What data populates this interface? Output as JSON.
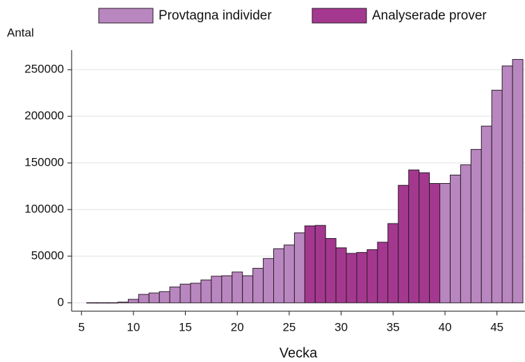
{
  "chart_data": {
    "type": "bar",
    "y_label": "Antal",
    "x_label": "Vecka",
    "x": [
      6,
      7,
      8,
      9,
      10,
      11,
      12,
      13,
      14,
      15,
      16,
      17,
      18,
      19,
      20,
      21,
      22,
      23,
      24,
      25,
      26,
      27,
      28,
      29,
      30,
      31,
      32,
      33,
      34,
      35,
      36,
      37,
      38,
      39,
      40,
      41,
      42,
      43,
      44,
      45,
      46,
      47
    ],
    "series": [
      {
        "name": "Provtagna individer",
        "color": "#b987bf",
        "values": [
          100,
          100,
          100,
          700,
          3700,
          9000,
          10500,
          12000,
          17000,
          20000,
          21000,
          24500,
          28500,
          29000,
          33000,
          29000,
          37000,
          47500,
          58000,
          62000,
          75000,
          null,
          null,
          null,
          null,
          null,
          null,
          null,
          null,
          null,
          null,
          null,
          null,
          null,
          128000,
          137000,
          148000,
          164500,
          189500,
          228000,
          254000,
          261000
        ]
      },
      {
        "name": "Analyserade prover",
        "color": "#a4388f",
        "values": [
          null,
          null,
          null,
          null,
          null,
          null,
          null,
          null,
          null,
          null,
          null,
          null,
          null,
          null,
          null,
          null,
          null,
          null,
          null,
          null,
          null,
          82500,
          83000,
          69000,
          59000,
          53000,
          54000,
          57000,
          65000,
          85000,
          126000,
          142500,
          139500,
          128000,
          null,
          null,
          null,
          null,
          null,
          null,
          null,
          null
        ]
      }
    ],
    "xlim": [
      4.05,
      47.7
    ],
    "ylim": [
      -9000,
      271000
    ],
    "xticks": [
      5,
      10,
      15,
      20,
      25,
      30,
      35,
      40,
      45
    ],
    "yticks": [
      0,
      50000,
      100000,
      150000,
      200000,
      250000
    ],
    "grid": true,
    "legend": "top"
  }
}
